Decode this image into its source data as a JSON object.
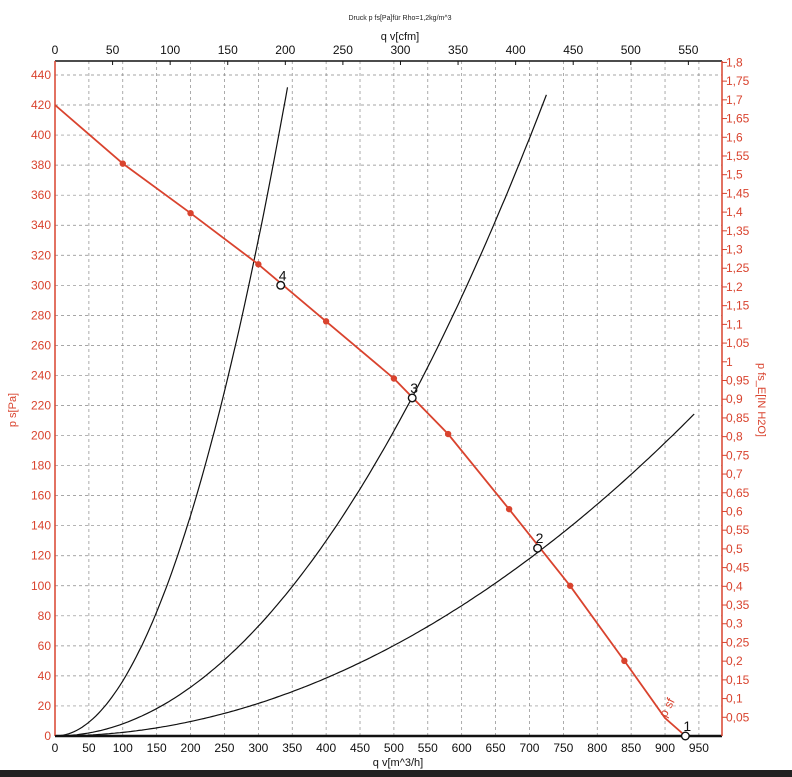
{
  "chart_data": {
    "type": "line",
    "title": "Druck p fs[Pa]für Rho=1,2kg/m^3",
    "xlabel_bottom": "q v[m^3/h]",
    "xlabel_top": "q v[cfm]",
    "ylabel_left": "p s[Pa]",
    "ylabel_right": "p fs_E[IN H2O]",
    "x_axis": {
      "min": 0,
      "max": 965,
      "ticks": [
        0,
        50,
        100,
        150,
        200,
        250,
        300,
        350,
        400,
        450,
        500,
        550,
        600,
        650,
        700,
        750,
        800,
        850,
        900,
        950
      ]
    },
    "x_top_axis": {
      "ticks": [
        0,
        50,
        100,
        150,
        200,
        250,
        300,
        350,
        400,
        450,
        500,
        550
      ]
    },
    "y_axis": {
      "min": 0,
      "max": 448,
      "ticks": [
        0,
        20,
        40,
        60,
        80,
        100,
        120,
        140,
        160,
        180,
        200,
        220,
        240,
        260,
        280,
        300,
        320,
        340,
        360,
        380,
        400,
        420,
        440
      ]
    },
    "y_right_axis": {
      "ticks": [
        "0,05",
        "0,1",
        "0,15",
        "0,2",
        "0,25",
        "0,3",
        "0,35",
        "0,4",
        "0,45",
        "0,5",
        "0,55",
        "0,6",
        "0,65",
        "0,7",
        "0,75",
        "0,8",
        "0,85",
        "0,9",
        "0,95",
        "1",
        "1,05",
        "1,1",
        "1,15",
        "1,2",
        "1,25",
        "1,3",
        "1,35",
        "1,4",
        "1,45",
        "1,5",
        "1,55",
        "1,6",
        "1,65",
        "1,7",
        "1,75",
        "1,8"
      ]
    },
    "grid": true,
    "fan_curve": {
      "color": "#d9432e",
      "x": [
        0,
        100,
        200,
        300,
        400,
        500,
        580,
        670,
        760,
        840,
        900,
        930
      ],
      "y": [
        420,
        381,
        348,
        314,
        276,
        238,
        201,
        151,
        100,
        50,
        12,
        0
      ],
      "markers_x": [
        100,
        200,
        300,
        400,
        500,
        580,
        670,
        760,
        840
      ],
      "curve_label": "p sf"
    },
    "system_curves": [
      {
        "k": 0.00367,
        "xmax": 343
      },
      {
        "k": 0.000812,
        "xmax": 725
      },
      {
        "k": 0.000241,
        "xmax": 943
      }
    ],
    "operating_points": [
      {
        "label": "1",
        "x": 930,
        "y": 0
      },
      {
        "label": "2",
        "x": 712,
        "y": 125
      },
      {
        "label": "3",
        "x": 527,
        "y": 225
      },
      {
        "label": "4",
        "x": 333,
        "y": 300
      }
    ],
    "colors": {
      "accent": "#d9432e",
      "line": "#111111",
      "grid": "#888888"
    }
  }
}
